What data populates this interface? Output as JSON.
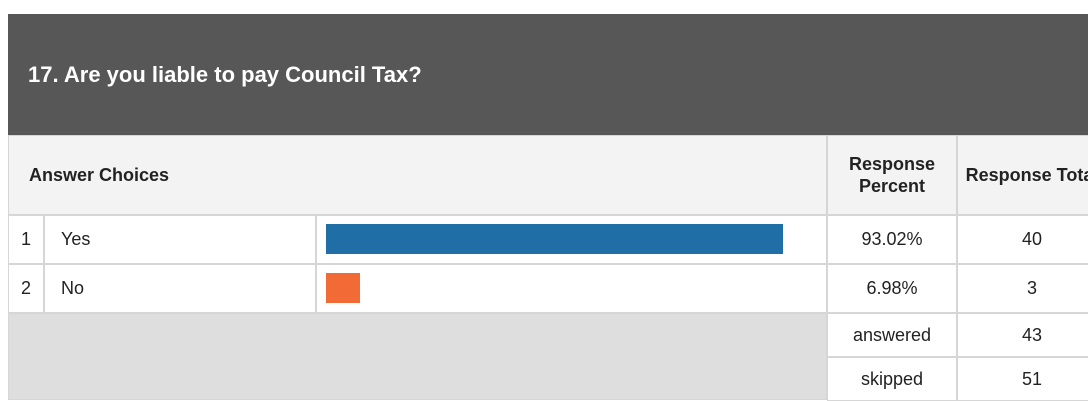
{
  "question": {
    "title": "17. Are you liable to pay Council Tax?"
  },
  "table": {
    "headers": [
      "Answer Choices",
      "Response Percent",
      "Response Total"
    ],
    "rows": [
      {
        "index": "1",
        "label": "Yes",
        "percent": 93.02,
        "percent_label": "93.02%",
        "total": 40,
        "color": "#1f6fa6"
      },
      {
        "index": "2",
        "label": "No",
        "percent": 6.98,
        "percent_label": "6.98%",
        "total": 3,
        "color": "#f26a36"
      }
    ],
    "summary": [
      {
        "label": "answered",
        "total": 43
      },
      {
        "label": "skipped",
        "total": 51
      }
    ],
    "percent_max": 100
  }
}
